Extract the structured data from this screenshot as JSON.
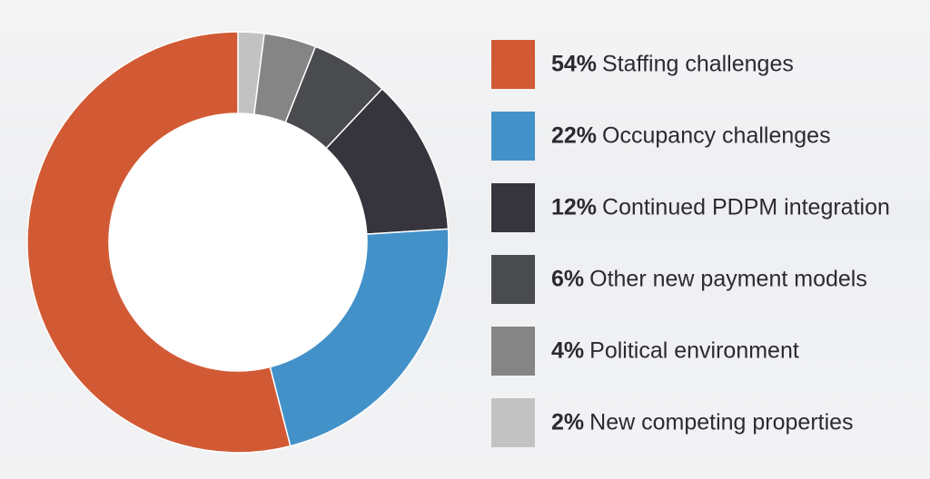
{
  "chart_data": {
    "type": "pie",
    "variant": "donut",
    "title": "",
    "legend_position": "right",
    "slices": [
      {
        "label": "Staffing challenges",
        "percent_label": "54%",
        "value": 54,
        "color": "#d15a34"
      },
      {
        "label": "Occupancy challenges",
        "percent_label": "22%",
        "value": 22,
        "color": "#4391c9"
      },
      {
        "label": "Continued PDPM integration",
        "percent_label": "12%",
        "value": 12,
        "color": "#36343c"
      },
      {
        "label": "Other new payment models",
        "percent_label": "6%",
        "value": 6,
        "color": "#4a4b4e"
      },
      {
        "label": "Political environment",
        "percent_label": "4%",
        "value": 4,
        "color": "#858585"
      },
      {
        "label": "New competing properties",
        "percent_label": "2%",
        "value": 2,
        "color": "#c2c2c2"
      }
    ]
  }
}
